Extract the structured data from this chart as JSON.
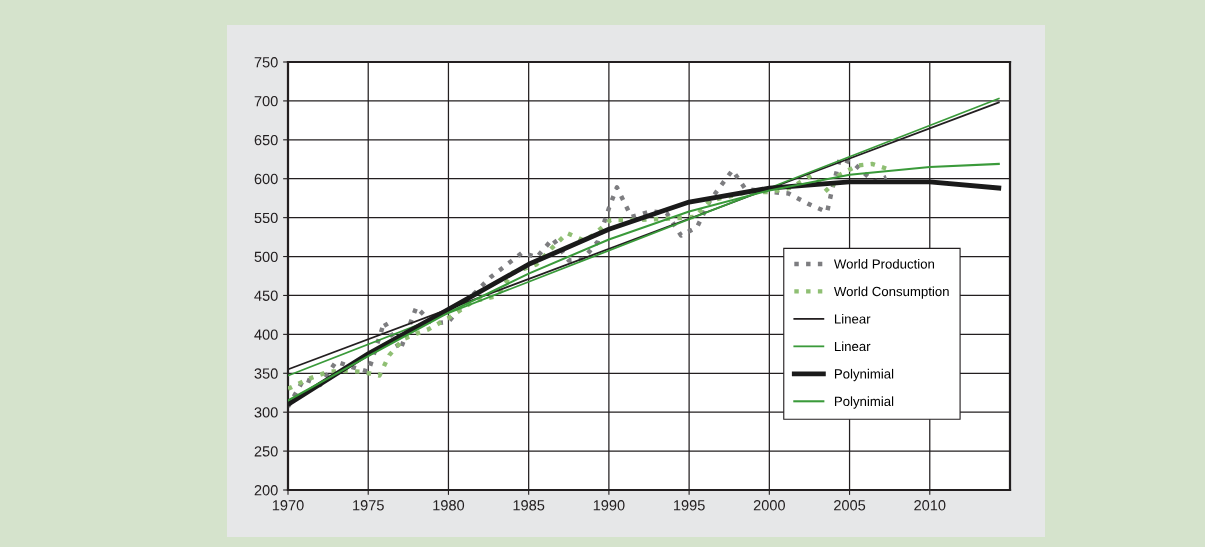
{
  "chart_data": {
    "type": "line",
    "xlim": [
      1970,
      2015
    ],
    "xticks": [
      1970,
      1975,
      1980,
      1985,
      1990,
      1995,
      2000,
      2005,
      2010
    ],
    "ylim": [
      200,
      750
    ],
    "yticks": [
      200,
      250,
      300,
      350,
      400,
      450,
      500,
      550,
      600,
      650,
      700,
      750
    ],
    "grid": true,
    "legend": "bottom right",
    "marker": "none",
    "series": [
      {
        "name": "World Production",
        "color": "#7d7d80",
        "line_style": "dotted",
        "x": [
          1970,
          1971,
          1972,
          1973,
          1974,
          1975,
          1976,
          1977,
          1978,
          1979,
          1980,
          1981,
          1982.6,
          1984.6,
          1985.5,
          1986.5,
          1987.5,
          1988.4,
          1989.3,
          1990,
          1990.5,
          1991.4,
          1992.6,
          1993.6,
          1994.5,
          1995.5,
          1996.3,
          1997.7,
          1998.5,
          2000,
          2001.2,
          2002.4,
          2003.6,
          2003.9,
          2004.4,
          2005.3,
          2006.5,
          2007.3
        ],
        "values": [
          307,
          343,
          335,
          365,
          358,
          352,
          416,
          380,
          435,
          414,
          416,
          440,
          473,
          505,
          499,
          523,
          495,
          497,
          519,
          562,
          589,
          551,
          558,
          556,
          527,
          538,
          572,
          611,
          587,
          583,
          581,
          568,
          557,
          585,
          626,
          619,
          596,
          602
        ]
      },
      {
        "name": "World Consumption",
        "color": "#8fbf73",
        "line_style": "dotted",
        "x": [
          1970,
          1971.3,
          1972.5,
          1973.6,
          1974.6,
          1975.7,
          1976.3,
          1977.2,
          1978,
          1978.7,
          1980,
          1981.6,
          1983,
          1984,
          1985.5,
          1986.4,
          1987.4,
          1988.4,
          1989,
          1990.1,
          1991.8,
          1993.9,
          1995.4,
          1996.3,
          1997.2,
          1998.7,
          2000.1,
          2001.4,
          2002.6,
          2003.2,
          2003.7,
          2004.3,
          2005.5,
          2006.4,
          2007.3
        ],
        "values": [
          330,
          343,
          352,
          353,
          352,
          347,
          373,
          394,
          401,
          406,
          421,
          443,
          449,
          479,
          490,
          510,
          530,
          521,
          527,
          547,
          547,
          549,
          551,
          572,
          576,
          583,
          583,
          589,
          604,
          594,
          583,
          604,
          617,
          619,
          613
        ]
      },
      {
        "name": "Linear",
        "color": "#231f20",
        "line_style": "solid",
        "x": [
          1970,
          2014.3
        ],
        "values": [
          355,
          698
        ]
      },
      {
        "name": "Linear",
        "color": "#3a9a3a",
        "line_style": "solid",
        "x": [
          1970,
          2014.3
        ],
        "values": [
          347,
          703
        ]
      },
      {
        "name": "Polynimial",
        "color": "#1a1a1a",
        "line_style": "solid",
        "x": [
          1970,
          1975,
          1980,
          1985,
          1990,
          1995,
          2000,
          2005,
          2010,
          2014.3
        ],
        "values": [
          310,
          375,
          432,
          490,
          535,
          570,
          588,
          596,
          596,
          588
        ]
      },
      {
        "name": "Polynimial",
        "color": "#3a9a3a",
        "line_style": "solid",
        "x": [
          1970,
          1975,
          1980,
          1985,
          1990,
          1995,
          2000,
          2005,
          2010,
          2014.3
        ],
        "values": [
          315,
          372,
          428,
          478,
          522,
          558,
          585,
          605,
          615,
          619
        ]
      }
    ]
  }
}
